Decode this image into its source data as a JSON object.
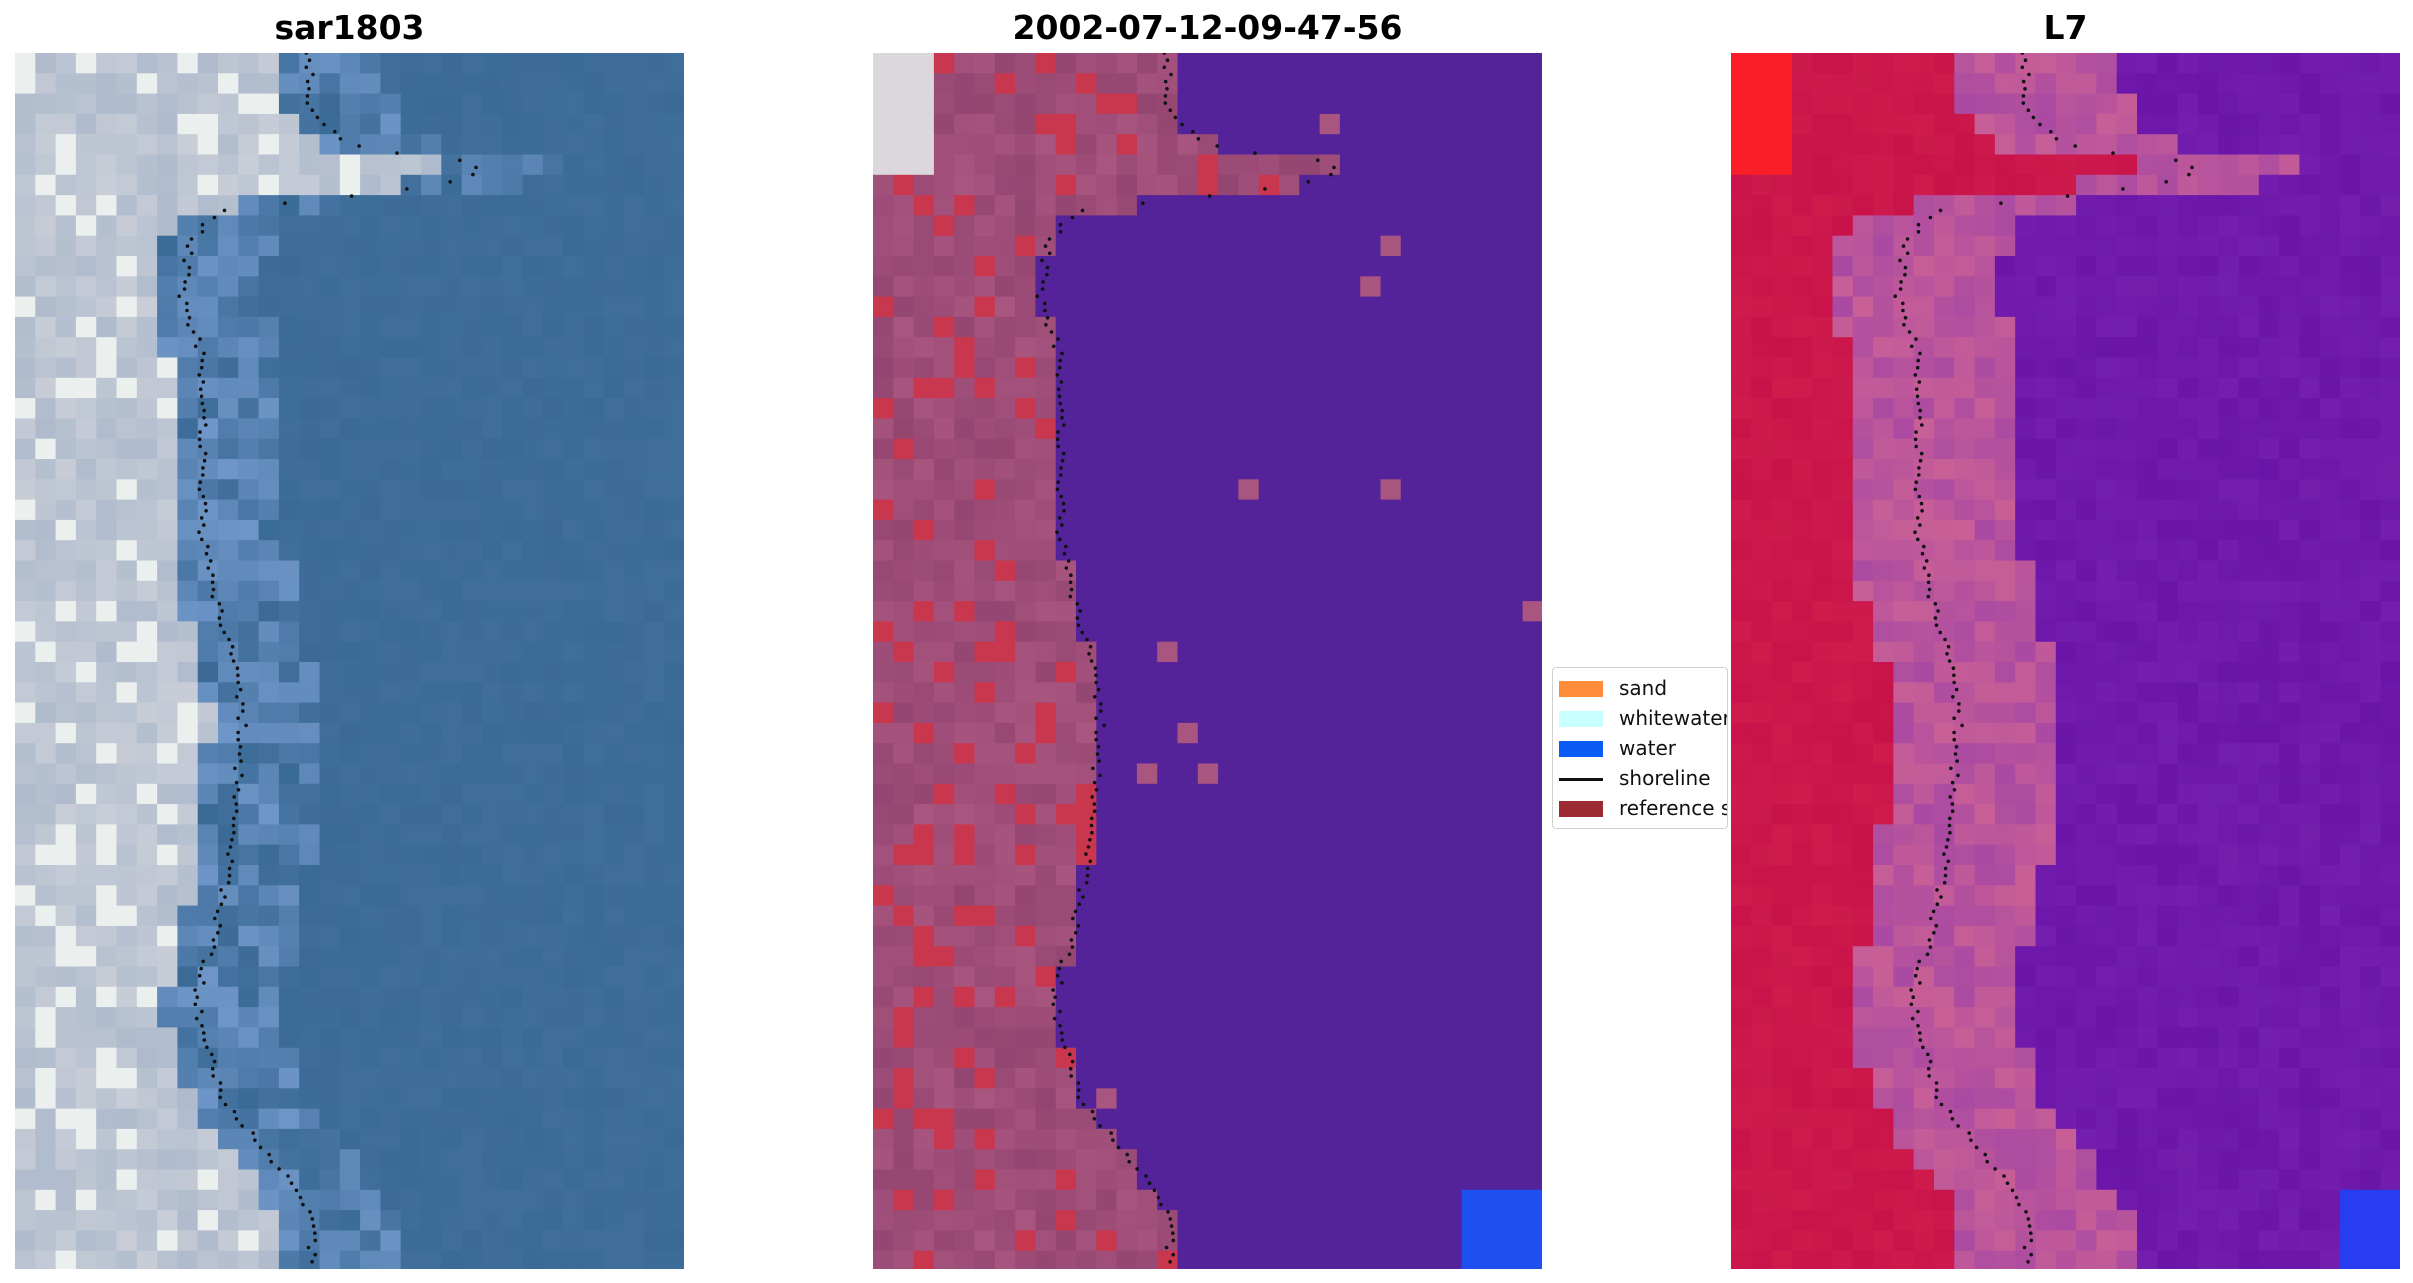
{
  "panels": [
    {
      "title": "sar1803",
      "kind": "rgb"
    },
    {
      "title": "2002-07-12-09-47-56",
      "kind": "classified"
    },
    {
      "title": "L7",
      "kind": "falsecolor"
    }
  ],
  "legend": {
    "items": [
      {
        "label": "sand",
        "color": "#ff8c3a",
        "type": "patch"
      },
      {
        "label": "whitewater",
        "color": "#c8ffff",
        "type": "patch"
      },
      {
        "label": "water",
        "color": "#0b5cf5",
        "type": "patch"
      },
      {
        "label": "shoreline",
        "color": "#111111",
        "type": "line"
      },
      {
        "label": "reference s",
        "color": "#9b2a33",
        "type": "patch"
      }
    ]
  },
  "colors": {
    "classified_water": "#54239a",
    "classified_land": "#a8557f",
    "classified_redpatch": "#c9374e",
    "falsecolor_land": "#c8124a",
    "falsecolor_water": "#6a15a8",
    "true_color_water": "#3a6a9a"
  }
}
